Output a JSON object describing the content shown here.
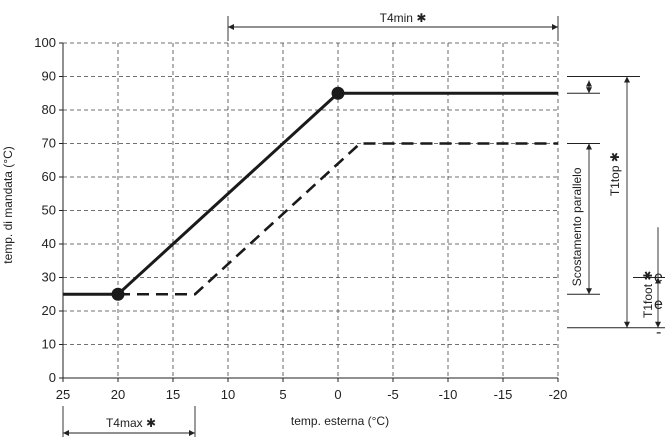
{
  "chart_data": {
    "type": "line",
    "xlabel": "temp. esterna (°C)",
    "ylabel": "temp. di mandata (°C)",
    "x_ticks": [
      25,
      20,
      15,
      10,
      5,
      0,
      -5,
      -10,
      -15,
      -20
    ],
    "y_ticks": [
      0,
      10,
      20,
      30,
      40,
      50,
      60,
      70,
      80,
      90,
      100
    ],
    "x_tick_labels": [
      "25",
      "20",
      "15",
      "10",
      "5",
      "0",
      "-5",
      "-10",
      "-15",
      "-20"
    ],
    "y_tick_labels": [
      "0",
      "10",
      "20",
      "30",
      "40",
      "50",
      "60",
      "70",
      "80",
      "90",
      "100"
    ],
    "xlim": [
      25,
      -20
    ],
    "ylim": [
      0,
      100
    ],
    "grid": true,
    "series": [
      {
        "style": "solid",
        "points": [
          [
            25,
            25
          ],
          [
            20,
            25
          ],
          [
            0,
            85
          ],
          [
            -20,
            85
          ]
        ],
        "markers": [
          [
            20,
            25
          ],
          [
            0,
            85
          ]
        ]
      },
      {
        "style": "dashed",
        "points": [
          [
            20,
            25
          ],
          [
            13,
            25
          ],
          [
            -2,
            70
          ],
          [
            -20,
            70
          ]
        ]
      }
    ],
    "annotations": {
      "t4min": "T4min",
      "t4max": "T4max",
      "t1top": "T1top",
      "t1foot": "T1foot",
      "star": "✱",
      "scostamento": "Scostamento parallelo"
    },
    "annotation_levels": {
      "t4min_x": [
        10,
        -20
      ],
      "t4max_x": [
        25,
        13
      ],
      "t1top_y": [
        15,
        90
      ],
      "t1foot_y": [
        15,
        30
      ],
      "scostamento_y": [
        25,
        85
      ]
    }
  },
  "edge_text": [
    "e",
    "e",
    "-"
  ]
}
